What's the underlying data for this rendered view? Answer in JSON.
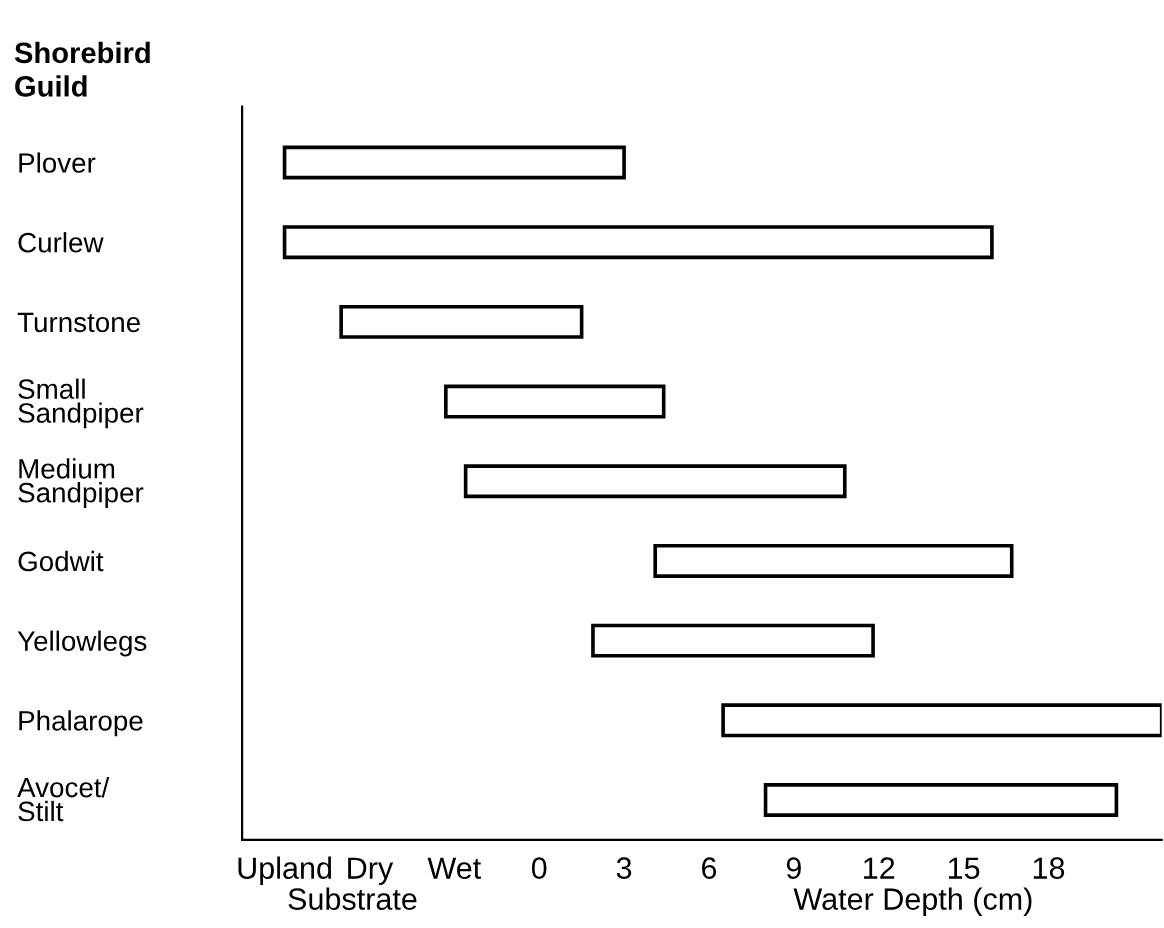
{
  "chart_data": {
    "type": "bar",
    "orientation": "horizontal",
    "ylabel": "Shorebird\nGuild",
    "xlabel": "Water Depth (cm)",
    "annotations": [
      "Substrate"
    ],
    "categories": [
      "Plover",
      "Curlew",
      "Turnstone",
      "Small\nSandpiper",
      "Medium\nSandpiper",
      "Godwit",
      "Yellowlegs",
      "Phalarope",
      "Avocet/\nStilt"
    ],
    "base": [
      -9,
      -9,
      -7,
      -3.3,
      -2.6,
      4.1,
      1.9,
      6.5,
      8
    ],
    "values": [
      12,
      25,
      8.5,
      7.7,
      13.4,
      12.6,
      9.9,
      15.5,
      12.4
    ],
    "color": "#ffffff",
    "xlim": [
      -10.5,
      22
    ],
    "xticks": [
      {
        "value": -9,
        "label": "Upland"
      },
      {
        "value": -6,
        "label": "Dry"
      },
      {
        "value": -3,
        "label": "Wet"
      },
      0,
      3,
      6,
      9,
      12,
      15,
      18
    ],
    "grid": false,
    "legend": false
  }
}
